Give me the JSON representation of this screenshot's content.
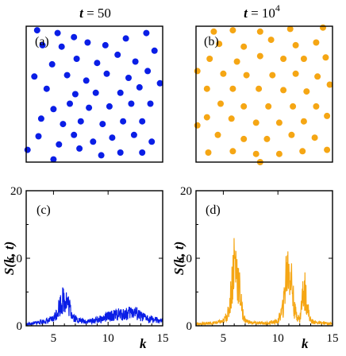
{
  "chart_data": [
    {
      "type": "scatter",
      "panel_label": "(a)",
      "title_var": "t",
      "title_rest": " = 50",
      "color": "#0a1ee6",
      "points": [
        [
          0.08,
          0.97
        ],
        [
          0.23,
          0.95
        ],
        [
          0.35,
          0.92
        ],
        [
          0.12,
          0.86
        ],
        [
          0.26,
          0.85
        ],
        [
          0.45,
          0.88
        ],
        [
          0.58,
          0.86
        ],
        [
          0.73,
          0.91
        ],
        [
          0.88,
          0.95
        ],
        [
          0.19,
          0.72
        ],
        [
          0.37,
          0.76
        ],
        [
          0.52,
          0.73
        ],
        [
          0.67,
          0.79
        ],
        [
          0.8,
          0.74
        ],
        [
          0.94,
          0.82
        ],
        [
          0.06,
          0.63
        ],
        [
          0.3,
          0.64
        ],
        [
          0.44,
          0.6
        ],
        [
          0.59,
          0.65
        ],
        [
          0.75,
          0.62
        ],
        [
          0.89,
          0.67
        ],
        [
          0.15,
          0.54
        ],
        [
          0.36,
          0.5
        ],
        [
          0.51,
          0.51
        ],
        [
          0.69,
          0.51
        ],
        [
          0.83,
          0.55
        ],
        [
          0.98,
          0.58
        ],
        [
          0.2,
          0.39
        ],
        [
          0.32,
          0.43
        ],
        [
          0.46,
          0.4
        ],
        [
          0.61,
          0.41
        ],
        [
          0.77,
          0.43
        ],
        [
          0.91,
          0.43
        ],
        [
          0.11,
          0.32
        ],
        [
          0.27,
          0.28
        ],
        [
          0.4,
          0.3
        ],
        [
          0.56,
          0.28
        ],
        [
          0.71,
          0.3
        ],
        [
          0.85,
          0.3
        ],
        [
          0.09,
          0.19
        ],
        [
          0.24,
          0.13
        ],
        [
          0.35,
          0.2
        ],
        [
          0.49,
          0.15
        ],
        [
          0.63,
          0.18
        ],
        [
          0.79,
          0.2
        ],
        [
          0.92,
          0.15
        ],
        [
          0.2,
          0.02
        ],
        [
          0.39,
          0.1
        ],
        [
          0.55,
          0.05
        ],
        [
          0.69,
          0.07
        ],
        [
          0.85,
          0.07
        ],
        [
          0.01,
          0.09
        ]
      ]
    },
    {
      "type": "scatter",
      "panel_label": "(b)",
      "title_var": "t",
      "title_rest": " = 10",
      "title_sup": "4",
      "color": "#f5a614",
      "points": [
        [
          0.13,
          0.96
        ],
        [
          0.27,
          0.97
        ],
        [
          0.47,
          0.96
        ],
        [
          0.69,
          0.98
        ],
        [
          0.93,
          0.99
        ],
        [
          0.17,
          0.87
        ],
        [
          0.35,
          0.85
        ],
        [
          0.55,
          0.9
        ],
        [
          0.73,
          0.86
        ],
        [
          0.88,
          0.88
        ],
        [
          0.1,
          0.76
        ],
        [
          0.3,
          0.74
        ],
        [
          0.47,
          0.78
        ],
        [
          0.64,
          0.76
        ],
        [
          0.79,
          0.76
        ],
        [
          0.95,
          0.77
        ],
        [
          0.01,
          0.67
        ],
        [
          0.2,
          0.65
        ],
        [
          0.37,
          0.64
        ],
        [
          0.56,
          0.64
        ],
        [
          0.73,
          0.65
        ],
        [
          0.89,
          0.63
        ],
        [
          0.08,
          0.54
        ],
        [
          0.27,
          0.54
        ],
        [
          0.46,
          0.54
        ],
        [
          0.64,
          0.53
        ],
        [
          0.81,
          0.52
        ],
        [
          0.98,
          0.57
        ],
        [
          0.18,
          0.43
        ],
        [
          0.35,
          0.41
        ],
        [
          0.53,
          0.41
        ],
        [
          0.71,
          0.41
        ],
        [
          0.88,
          0.41
        ],
        [
          0.08,
          0.33
        ],
        [
          0.26,
          0.32
        ],
        [
          0.44,
          0.29
        ],
        [
          0.61,
          0.29
        ],
        [
          0.79,
          0.3
        ],
        [
          0.96,
          0.34
        ],
        [
          0.16,
          0.2
        ],
        [
          0.35,
          0.17
        ],
        [
          0.52,
          0.17
        ],
        [
          0.7,
          0.2
        ],
        [
          0.87,
          0.18
        ],
        [
          0.09,
          0.07
        ],
        [
          0.27,
          0.08
        ],
        [
          0.44,
          0.06
        ],
        [
          0.61,
          0.06
        ],
        [
          0.78,
          0.08
        ],
        [
          0.96,
          0.09
        ],
        [
          0.01,
          0.27
        ],
        [
          0.47,
          0.0
        ]
      ]
    },
    {
      "type": "line",
      "panel_label": "(c)",
      "color": "#0a1ee6",
      "xlabel": "k",
      "ylabel": "S(k, t)",
      "xlim": [
        2.5,
        15
      ],
      "ylim": [
        0,
        20
      ],
      "xticks": [
        5,
        10,
        15
      ],
      "yticks": [
        0,
        10,
        20
      ],
      "x": [
        2.5,
        3,
        3.5,
        4,
        4.5,
        5,
        5.25,
        5.5,
        5.75,
        6,
        6.25,
        6.5,
        6.75,
        7,
        7.5,
        8,
        8.5,
        9,
        9.5,
        10,
        10.5,
        11,
        11.5,
        12,
        12.25,
        12.5,
        13,
        13.5,
        14,
        14.5,
        15
      ],
      "y": [
        0.3,
        0.4,
        0.6,
        0.8,
        0.9,
        1.3,
        2.2,
        3.5,
        4.4,
        5.2,
        4.6,
        3.2,
        2.0,
        1.3,
        0.9,
        0.8,
        0.9,
        1.1,
        1.3,
        1.7,
        1.9,
        2.1,
        2.1,
        2.4,
        2.8,
        2.4,
        1.7,
        1.4,
        1.2,
        1.0,
        0.8
      ]
    },
    {
      "type": "line",
      "panel_label": "(d)",
      "color": "#f5a614",
      "xlabel": "k",
      "ylabel": "S(k, t)",
      "xlim": [
        2.5,
        15
      ],
      "ylim": [
        0,
        20
      ],
      "xticks": [
        5,
        10,
        15
      ],
      "yticks": [
        0,
        10,
        20
      ],
      "x": [
        2.5,
        3,
        4,
        5,
        5.5,
        5.75,
        6,
        6.25,
        6.5,
        6.75,
        7,
        7.5,
        8,
        9,
        10,
        10.5,
        10.75,
        11,
        11.25,
        11.5,
        12,
        12.25,
        12.5,
        12.75,
        13,
        13.5,
        14,
        15
      ],
      "y": [
        0.3,
        0.4,
        0.5,
        0.8,
        2.5,
        7,
        12.5,
        10,
        6.5,
        2.5,
        1.0,
        0.6,
        0.5,
        0.5,
        0.8,
        3.5,
        9.5,
        11,
        8.5,
        3.0,
        1.0,
        5.5,
        6.5,
        3.0,
        0.9,
        0.6,
        0.5,
        0.4
      ]
    }
  ]
}
